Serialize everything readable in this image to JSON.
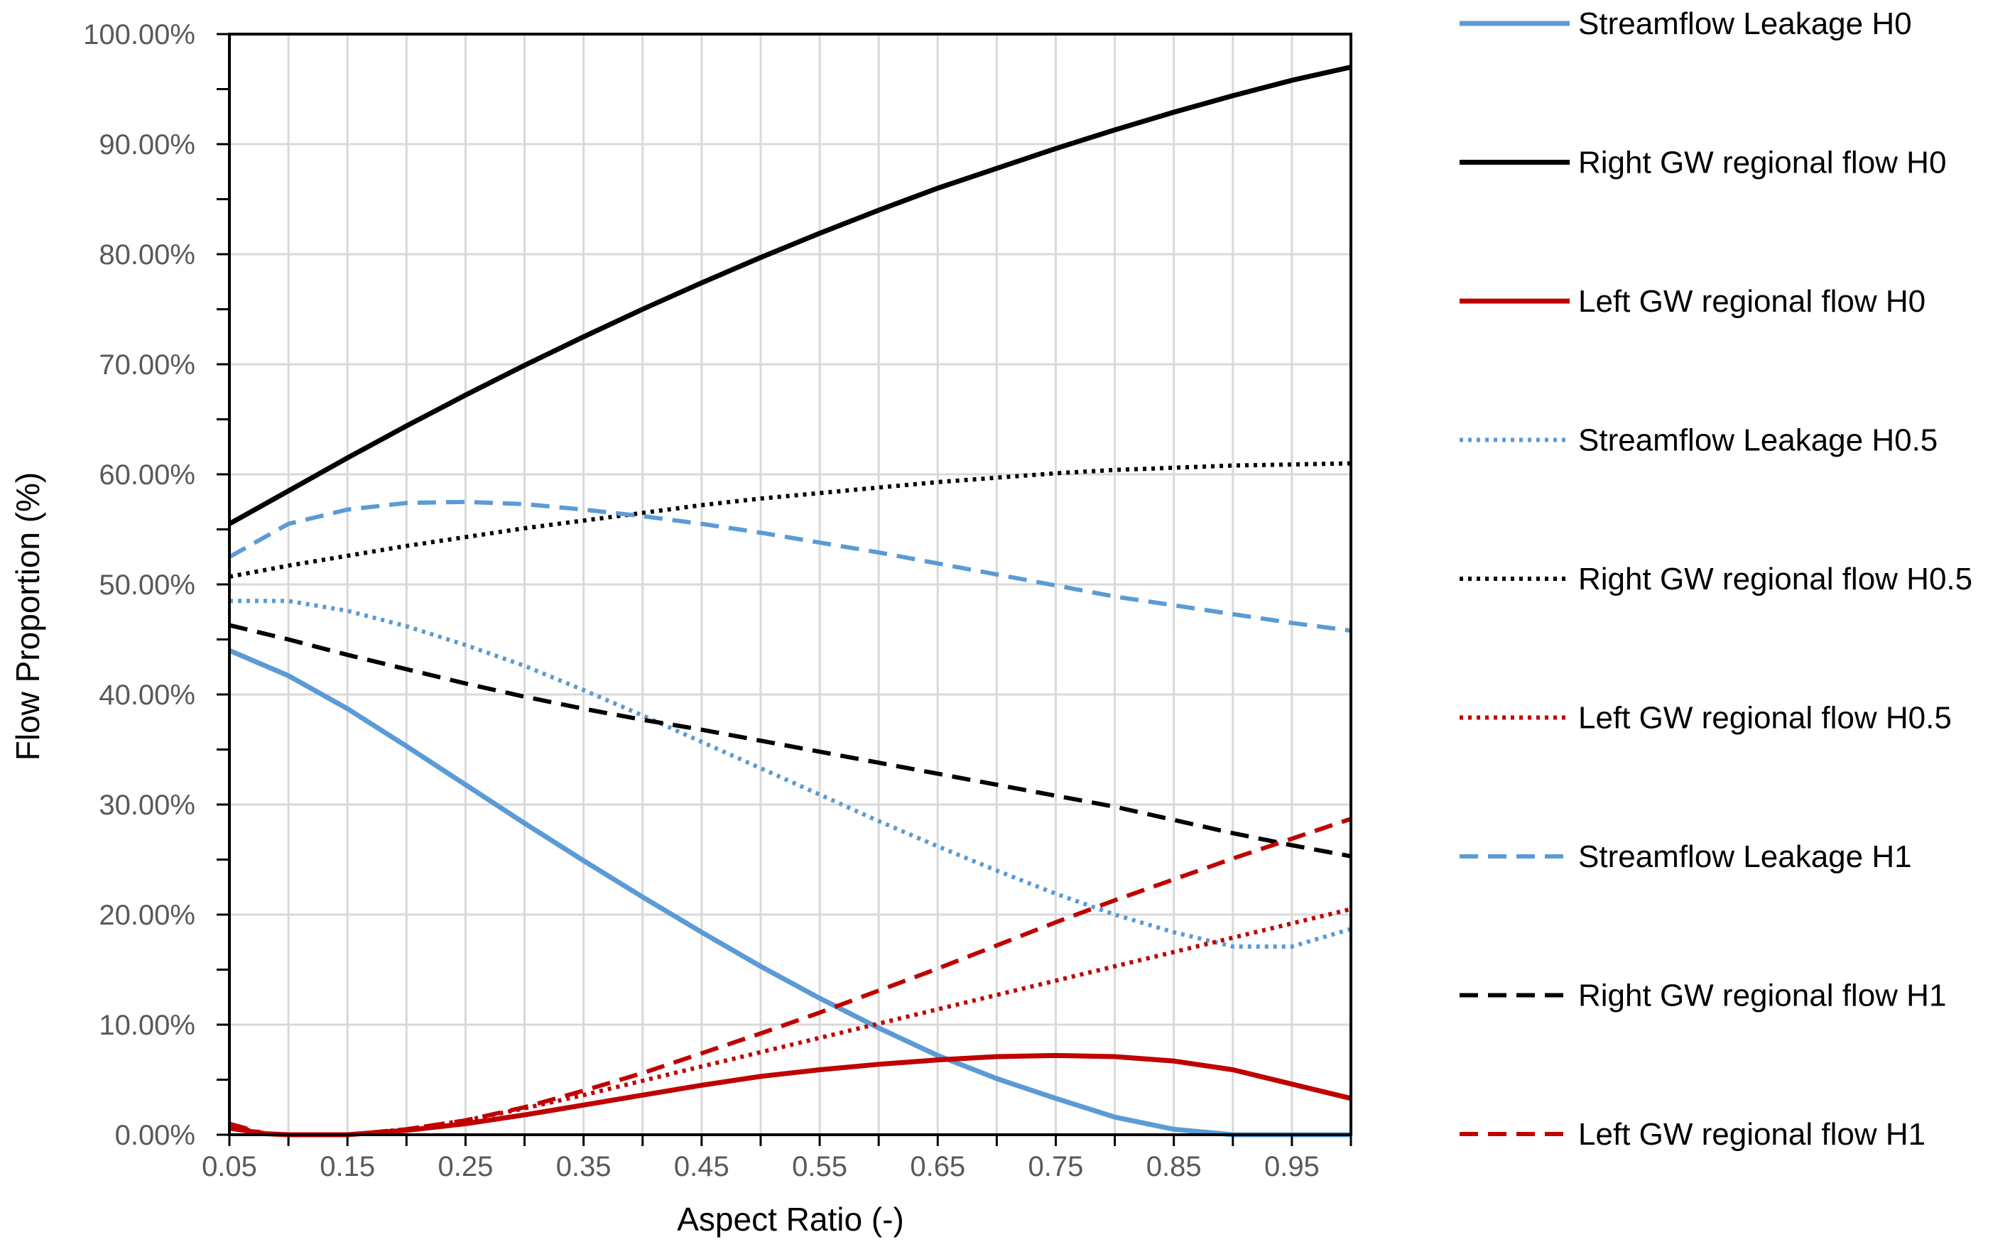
{
  "chart_data": {
    "type": "line",
    "title": "",
    "xlabel": "Aspect Ratio (-)",
    "ylabel": "Flow Proportion (%)",
    "xlim": [
      0.05,
      1.0
    ],
    "ylim": [
      0,
      100
    ],
    "x_ticks": [
      "0.05",
      "0.15",
      "0.25",
      "0.35",
      "0.45",
      "0.55",
      "0.65",
      "0.75",
      "0.85",
      "0.95"
    ],
    "y_ticks": [
      "0.00%",
      "10.00%",
      "20.00%",
      "30.00%",
      "40.00%",
      "50.00%",
      "60.00%",
      "70.00%",
      "80.00%",
      "90.00%",
      "100.00%"
    ],
    "grid": true,
    "legend_position": "right",
    "series": [
      {
        "name": "Streamflow Leakage H0",
        "color": "#5B9BD5",
        "dash": "solid",
        "x": [
          0.05,
          0.1,
          0.15,
          0.2,
          0.25,
          0.3,
          0.35,
          0.4,
          0.45,
          0.5,
          0.55,
          0.6,
          0.65,
          0.7,
          0.75,
          0.8,
          0.85,
          0.9,
          0.95,
          1.0
        ],
        "y": [
          44.0,
          41.7,
          38.7,
          35.3,
          31.8,
          28.3,
          24.9,
          21.6,
          18.4,
          15.3,
          12.4,
          9.7,
          7.2,
          5.1,
          3.3,
          1.6,
          0.5,
          0.0,
          0.0,
          0.0
        ]
      },
      {
        "name": "Right GW regional flow H0",
        "color": "#000000",
        "dash": "solid",
        "x": [
          0.05,
          0.1,
          0.15,
          0.2,
          0.25,
          0.3,
          0.35,
          0.4,
          0.45,
          0.5,
          0.55,
          0.6,
          0.65,
          0.7,
          0.75,
          0.8,
          0.85,
          0.9,
          0.95,
          1.0
        ],
        "y": [
          55.5,
          58.5,
          61.5,
          64.4,
          67.2,
          69.9,
          72.5,
          75.0,
          77.4,
          79.7,
          81.9,
          84.0,
          86.0,
          87.8,
          89.6,
          91.3,
          92.9,
          94.4,
          95.8,
          97.0
        ]
      },
      {
        "name": "Left GW regional flow H0",
        "color": "#C00000",
        "dash": "solid",
        "x": [
          0.05,
          0.08,
          0.1,
          0.15,
          0.2,
          0.25,
          0.3,
          0.35,
          0.4,
          0.45,
          0.5,
          0.55,
          0.6,
          0.65,
          0.7,
          0.75,
          0.8,
          0.85,
          0.9,
          0.95,
          1.0
        ],
        "y": [
          0.6,
          0.1,
          0.0,
          0.0,
          0.4,
          1.0,
          1.8,
          2.7,
          3.6,
          4.5,
          5.3,
          5.9,
          6.4,
          6.8,
          7.1,
          7.2,
          7.1,
          6.7,
          5.9,
          4.6,
          3.3
        ]
      },
      {
        "name": "Streamflow Leakage H0.5",
        "color": "#5B9BD5",
        "dash": "dotted",
        "x": [
          0.05,
          0.1,
          0.15,
          0.2,
          0.25,
          0.3,
          0.35,
          0.4,
          0.45,
          0.5,
          0.55,
          0.6,
          0.65,
          0.7,
          0.75,
          0.8,
          0.85,
          0.9,
          0.95,
          1.0
        ],
        "y": [
          48.5,
          48.5,
          47.6,
          46.2,
          44.5,
          42.6,
          40.4,
          38.1,
          35.7,
          33.3,
          30.9,
          28.5,
          26.2,
          24.0,
          21.9,
          20.0,
          18.4,
          17.1,
          17.1,
          18.7
        ]
      },
      {
        "name": "Right GW regional flow H0.5",
        "color": "#000000",
        "dash": "dotted",
        "x": [
          0.05,
          0.1,
          0.15,
          0.2,
          0.25,
          0.3,
          0.35,
          0.4,
          0.45,
          0.5,
          0.55,
          0.6,
          0.65,
          0.7,
          0.75,
          0.8,
          0.85,
          0.9,
          0.95,
          1.0
        ],
        "y": [
          50.7,
          51.7,
          52.6,
          53.5,
          54.3,
          55.1,
          55.8,
          56.5,
          57.2,
          57.8,
          58.3,
          58.8,
          59.3,
          59.7,
          60.1,
          60.4,
          60.6,
          60.8,
          60.9,
          61.0
        ]
      },
      {
        "name": "Left GW regional flow H0.5",
        "color": "#C00000",
        "dash": "dotted",
        "x": [
          0.05,
          0.08,
          0.1,
          0.15,
          0.2,
          0.25,
          0.3,
          0.35,
          0.4,
          0.45,
          0.5,
          0.55,
          0.6,
          0.65,
          0.7,
          0.75,
          0.8,
          0.85,
          0.9,
          0.95,
          1.0
        ],
        "y": [
          0.8,
          0.1,
          0.0,
          0.0,
          0.5,
          1.3,
          2.4,
          3.6,
          4.9,
          6.2,
          7.5,
          8.8,
          10.1,
          11.4,
          12.7,
          14.0,
          15.3,
          16.6,
          17.9,
          19.2,
          20.5
        ]
      },
      {
        "name": "Streamflow Leakage H1",
        "color": "#5B9BD5",
        "dash": "dashed",
        "x": [
          0.05,
          0.1,
          0.15,
          0.2,
          0.25,
          0.3,
          0.35,
          0.4,
          0.45,
          0.5,
          0.55,
          0.6,
          0.65,
          0.7,
          0.75,
          0.8,
          0.85,
          0.9,
          0.95,
          1.0
        ],
        "y": [
          52.5,
          55.5,
          56.8,
          57.4,
          57.5,
          57.3,
          56.8,
          56.2,
          55.5,
          54.7,
          53.8,
          52.9,
          51.9,
          50.9,
          49.9,
          48.9,
          48.1,
          47.3,
          46.5,
          45.8
        ]
      },
      {
        "name": "Right GW regional flow H1",
        "color": "#000000",
        "dash": "dashed",
        "x": [
          0.05,
          0.1,
          0.15,
          0.2,
          0.25,
          0.3,
          0.35,
          0.4,
          0.45,
          0.5,
          0.55,
          0.6,
          0.65,
          0.7,
          0.75,
          0.8,
          0.85,
          0.9,
          0.95,
          1.0
        ],
        "y": [
          46.3,
          45.0,
          43.6,
          42.3,
          41.0,
          39.8,
          38.7,
          37.7,
          36.8,
          35.8,
          34.8,
          33.8,
          32.8,
          31.8,
          30.8,
          29.8,
          28.6,
          27.4,
          26.3,
          25.3
        ]
      },
      {
        "name": "Left GW regional flow H1",
        "color": "#C00000",
        "dash": "dashed",
        "x": [
          0.05,
          0.08,
          0.1,
          0.15,
          0.2,
          0.25,
          0.3,
          0.35,
          0.4,
          0.45,
          0.5,
          0.55,
          0.6,
          0.65,
          0.7,
          0.75,
          0.8,
          0.85,
          0.9,
          0.95,
          1.0
        ],
        "y": [
          1.0,
          0.1,
          0.0,
          0.0,
          0.5,
          1.3,
          2.5,
          4.0,
          5.6,
          7.4,
          9.2,
          11.1,
          13.1,
          15.1,
          17.2,
          19.3,
          21.3,
          23.2,
          25.1,
          26.9,
          28.7
        ]
      }
    ]
  }
}
